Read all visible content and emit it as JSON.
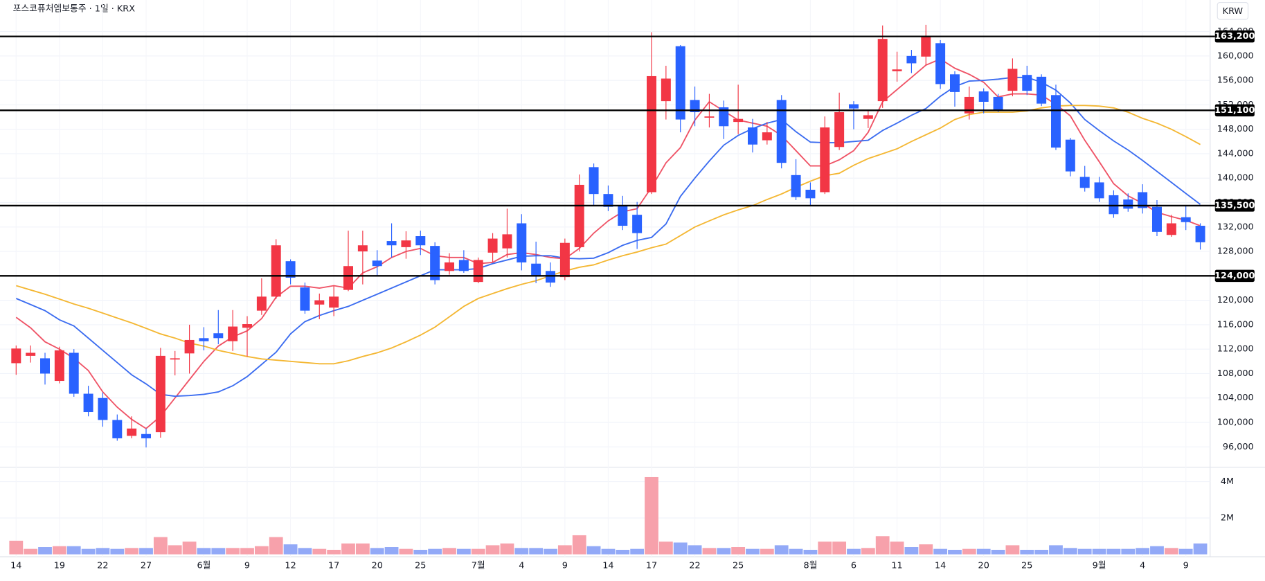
{
  "chart_data": {
    "type": "candlestick",
    "title": "포스코퓨처엠보통주 · 1일 · KRX",
    "currency": "KRW",
    "up_color": "#f23645",
    "down_color": "#2962ff",
    "grid": true,
    "categories": [
      "14",
      null,
      null,
      "19",
      null,
      null,
      "22",
      null,
      null,
      "27",
      null,
      null,
      null,
      "6월",
      null,
      null,
      "9",
      null,
      null,
      "12",
      null,
      null,
      "17",
      null,
      null,
      "20",
      null,
      null,
      "25",
      null,
      null,
      null,
      "7월",
      null,
      null,
      "4",
      null,
      null,
      "9",
      null,
      null,
      "14",
      null,
      null,
      "17",
      null,
      null,
      "22",
      null,
      null,
      "25",
      null,
      null,
      null,
      null,
      "8월",
      null,
      null,
      "6",
      null,
      null,
      "11",
      null,
      null,
      "14",
      null,
      null,
      "20",
      null,
      null,
      "25",
      null,
      null,
      null,
      null,
      "9월",
      null,
      null,
      "4",
      null,
      null,
      "9",
      null
    ],
    "open": [
      109700,
      110900,
      110500,
      106800,
      111400,
      104700,
      104000,
      100400,
      97800,
      98100,
      98400,
      110300,
      111300,
      113800,
      114600,
      113300,
      115500,
      118300,
      120600,
      126400,
      122100,
      119300,
      118800,
      121700,
      128000,
      126500,
      129700,
      128700,
      130500,
      128900,
      124800,
      126600,
      123000,
      127800,
      128500,
      132600,
      126000,
      124800,
      123800,
      128700,
      141800,
      137400,
      135600,
      134000,
      137700,
      152600,
      161600,
      152800,
      149900,
      151600,
      149200,
      148300,
      146200,
      152800,
      140500,
      138100,
      137700,
      145100,
      152100,
      149700,
      152600,
      157500,
      160000,
      159900,
      162100,
      157000,
      150600,
      154200,
      153300,
      154300,
      156900,
      156600,
      153600,
      146300,
      140200,
      139300,
      137200,
      136500,
      137700,
      135300,
      130700,
      133600,
      132200
    ],
    "high": [
      112600,
      112600,
      111400,
      112400,
      112000,
      106000,
      104900,
      101300,
      101000,
      99000,
      112200,
      111700,
      116000,
      115600,
      118400,
      118400,
      117400,
      123600,
      130000,
      126700,
      122900,
      121100,
      122400,
      131400,
      131400,
      128200,
      132600,
      131300,
      131400,
      129500,
      127700,
      128200,
      127000,
      131000,
      135000,
      134100,
      129600,
      126200,
      130100,
      140600,
      142400,
      138800,
      137100,
      136100,
      163900,
      158400,
      161800,
      155000,
      153800,
      152700,
      155300,
      149700,
      149200,
      153600,
      143100,
      139300,
      150100,
      154000,
      152600,
      151200,
      165000,
      160700,
      161000,
      165100,
      162600,
      157500,
      155000,
      154700,
      153800,
      159600,
      158400,
      157000,
      155300,
      146600,
      142000,
      140200,
      138000,
      137500,
      139000,
      136400,
      134000,
      135400,
      132600
    ],
    "low": [
      107800,
      109800,
      106200,
      106400,
      104200,
      101000,
      99300,
      97000,
      97400,
      95900,
      97500,
      107700,
      108000,
      111800,
      112800,
      111700,
      110800,
      117600,
      120200,
      122600,
      117800,
      116900,
      117400,
      121500,
      122600,
      124000,
      127000,
      126800,
      127400,
      122600,
      124200,
      124500,
      122800,
      126300,
      127000,
      124900,
      122800,
      122200,
      123300,
      128000,
      135500,
      134600,
      131500,
      128400,
      137400,
      149600,
      147500,
      148500,
      148300,
      146400,
      147200,
      144200,
      145500,
      141600,
      136400,
      135500,
      137400,
      144600,
      148000,
      148200,
      151500,
      155800,
      157200,
      158500,
      154600,
      151700,
      149600,
      150600,
      150800,
      153400,
      153600,
      151800,
      144600,
      140300,
      137800,
      136100,
      133500,
      134500,
      134200,
      130500,
      130400,
      131500,
      128300
    ],
    "close": [
      112100,
      111400,
      108000,
      111800,
      104700,
      101700,
      100400,
      97400,
      99000,
      97400,
      110900,
      110500,
      113500,
      113300,
      113800,
      115700,
      116100,
      120600,
      129000,
      123700,
      118300,
      120000,
      120600,
      125600,
      129000,
      125600,
      129000,
      129800,
      129000,
      123300,
      126200,
      124800,
      126600,
      130100,
      130800,
      126200,
      124100,
      122900,
      129400,
      138900,
      137400,
      135300,
      132200,
      131000,
      156700,
      156300,
      149600,
      150800,
      150100,
      148500,
      149700,
      145500,
      147500,
      142500,
      136900,
      136700,
      148300,
      150800,
      151400,
      150300,
      162800,
      157800,
      158800,
      163200,
      155400,
      154100,
      153300,
      152500,
      151200,
      157900,
      154300,
      152200,
      145000,
      141100,
      138400,
      136700,
      134100,
      135000,
      135100,
      131200,
      132600,
      132800,
      129500
    ],
    "ma": [
      {
        "color": "#ef5366",
        "values": [
          117200,
          115500,
          113200,
          112000,
          110500,
          108500,
          105000,
          102500,
          100500,
          99000,
          101000,
          104000,
          107000,
          110000,
          112500,
          114000,
          115000,
          117000,
          120500,
          122300,
          122300,
          122000,
          122400,
          122000,
          124500,
          125500,
          127000,
          128000,
          128500,
          127300,
          127000,
          127000,
          126000,
          126200,
          127500,
          127800,
          127500,
          127000,
          126800,
          128500,
          131000,
          133000,
          134500,
          135000,
          138500,
          142500,
          145000,
          149500,
          152500,
          151000,
          149500,
          149000,
          148500,
          147000,
          144500,
          142000,
          142000,
          143000,
          144500,
          147500,
          152500,
          154500,
          156500,
          158500,
          159500,
          158000,
          157000,
          155700,
          153300,
          153800,
          153800,
          153600,
          152100,
          150200,
          146200,
          142700,
          139100,
          137100,
          135900,
          134400,
          133700,
          133100,
          132200
        ]
      },
      {
        "color": "#3b6cf0",
        "values": [
          120300,
          119300,
          118300,
          116800,
          115800,
          113800,
          111800,
          109800,
          107800,
          106300,
          104600,
          104300,
          104400,
          104600,
          105000,
          106000,
          107500,
          109500,
          111500,
          114500,
          116500,
          117500,
          118300,
          119000,
          120000,
          121000,
          122000,
          123000,
          124000,
          125000,
          125000,
          125000,
          125200,
          126000,
          126600,
          127200,
          127300,
          127300,
          126900,
          126800,
          126900,
          127800,
          129000,
          129800,
          130300,
          132500,
          137000,
          140000,
          142800,
          145400,
          147000,
          148100,
          149000,
          149600,
          147600,
          145900,
          145800,
          145800,
          146000,
          146200,
          147800,
          149000,
          150300,
          151400,
          153400,
          155000,
          155900,
          156000,
          156200,
          156500,
          156500,
          155700,
          154400,
          152300,
          149600,
          147800,
          146100,
          144600,
          142900,
          141100,
          139300,
          137500,
          135700
        ]
      },
      {
        "color": "#f4b733",
        "values": [
          122400,
          121700,
          121000,
          120200,
          119400,
          118700,
          117900,
          117100,
          116300,
          115400,
          114500,
          113800,
          113000,
          112500,
          111800,
          111300,
          110800,
          110400,
          110200,
          110000,
          109800,
          109600,
          109600,
          110100,
          110800,
          111400,
          112200,
          113200,
          114300,
          115600,
          117300,
          119000,
          120300,
          121100,
          121900,
          122600,
          123200,
          124000,
          124800,
          125400,
          125800,
          126600,
          127300,
          127900,
          128600,
          129200,
          130600,
          132000,
          133000,
          134000,
          134800,
          135500,
          136500,
          137400,
          138500,
          139500,
          140400,
          140800,
          142100,
          143200,
          144000,
          144800,
          146000,
          147100,
          148200,
          149600,
          150400,
          150800,
          150800,
          150800,
          151000,
          151500,
          151800,
          151900,
          151900,
          151800,
          151500,
          150800,
          149800,
          149000,
          148000,
          146800,
          145500
        ]
      }
    ],
    "levels": [
      {
        "value": 163200,
        "label": "163,200"
      },
      {
        "value": 151100,
        "label": "151,100"
      },
      {
        "value": 135500,
        "label": "135,500"
      },
      {
        "value": 124000,
        "label": "124,000"
      }
    ],
    "ylim": [
      92800,
      165200
    ],
    "yticks": [
      {
        "value": 96000,
        "label": "96,000"
      },
      {
        "value": 100000,
        "label": "100,000"
      },
      {
        "value": 104000,
        "label": "104,000"
      },
      {
        "value": 108000,
        "label": "108,000"
      },
      {
        "value": 112000,
        "label": "112,000"
      },
      {
        "value": 116000,
        "label": "116,000"
      },
      {
        "value": 120000,
        "label": "120,000"
      },
      {
        "value": 124000,
        "label": "124,000"
      },
      {
        "value": 128000,
        "label": "128,000"
      },
      {
        "value": 132000,
        "label": "132,000"
      },
      {
        "value": 136000,
        "label": "136,000"
      },
      {
        "value": 140000,
        "label": "140,000"
      },
      {
        "value": 144000,
        "label": "144,000"
      },
      {
        "value": 148000,
        "label": "148,000"
      },
      {
        "value": 152000,
        "label": "152,000"
      },
      {
        "value": 156000,
        "label": "156,000"
      },
      {
        "value": 160000,
        "label": "160,000"
      },
      {
        "value": 164000,
        "label": "164,000"
      }
    ],
    "volume": {
      "up_color": "#f7a1ab",
      "down_color": "#92a9f7",
      "values": [
        750000,
        300000,
        400000,
        450000,
        450000,
        300000,
        350000,
        300000,
        350000,
        350000,
        950000,
        500000,
        700000,
        350000,
        350000,
        350000,
        350000,
        450000,
        950000,
        550000,
        350000,
        300000,
        250000,
        600000,
        600000,
        350000,
        400000,
        300000,
        250000,
        300000,
        350000,
        300000,
        300000,
        500000,
        600000,
        350000,
        350000,
        300000,
        500000,
        1050000,
        450000,
        300000,
        250000,
        300000,
        4250000,
        700000,
        650000,
        500000,
        350000,
        350000,
        400000,
        300000,
        300000,
        500000,
        300000,
        250000,
        700000,
        700000,
        300000,
        350000,
        1000000,
        700000,
        400000,
        550000,
        300000,
        250000,
        300000,
        300000,
        250000,
        500000,
        250000,
        250000,
        500000,
        350000,
        300000,
        300000,
        300000,
        300000,
        350000,
        450000,
        350000,
        300000,
        600000
      ],
      "ylim": [
        0,
        4750000
      ],
      "yticks": [
        {
          "value": 2000000,
          "label": "2M"
        },
        {
          "value": 4000000,
          "label": "4M"
        }
      ]
    }
  }
}
